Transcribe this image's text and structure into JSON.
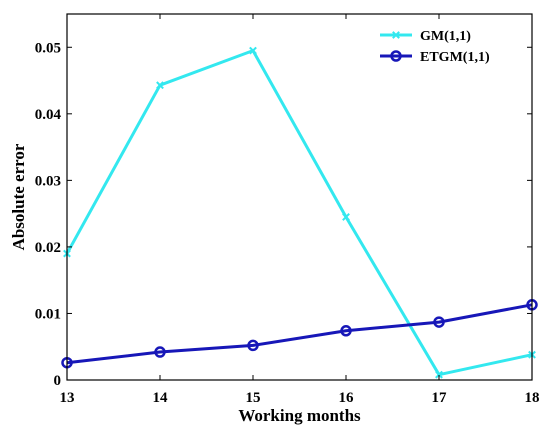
{
  "chart_data": {
    "type": "line",
    "xlabel": "Working months",
    "ylabel": "Absolute error",
    "x": [
      13,
      14,
      15,
      16,
      17,
      18
    ],
    "xlim": [
      13,
      18
    ],
    "ylim": [
      0,
      0.055
    ],
    "xticks": [
      "13",
      "14",
      "15",
      "16",
      "17",
      "18"
    ],
    "yticks": [
      {
        "value": 0,
        "label": "0"
      },
      {
        "value": 0.01,
        "label": "0.01"
      },
      {
        "value": 0.02,
        "label": "0.02"
      },
      {
        "value": 0.03,
        "label": "0.03"
      },
      {
        "value": 0.04,
        "label": "0.04"
      },
      {
        "value": 0.05,
        "label": "0.05"
      }
    ],
    "grid": false,
    "legend_position": "top-right",
    "series": [
      {
        "name": "GM(1,1)",
        "values": [
          0.019,
          0.0443,
          0.0495,
          0.0245,
          0.0008,
          0.0038
        ],
        "color": "#33e8ef",
        "marker": "x"
      },
      {
        "name": "ETGM(1,1)",
        "values": [
          0.0026,
          0.0042,
          0.0052,
          0.0074,
          0.0087,
          0.0113
        ],
        "color": "#1717b8",
        "marker": "circle"
      }
    ]
  }
}
